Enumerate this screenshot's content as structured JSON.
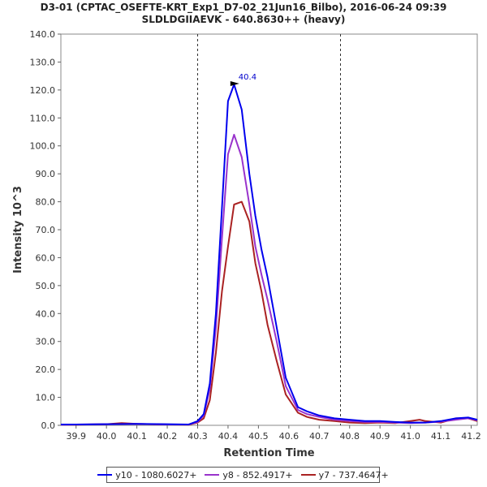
{
  "chart_data": {
    "type": "line",
    "title": "D3-01 (CPTAC_OSEFTE-KRT_Exp1_D7-02_21Jun16_Bilbo), 2016-06-24 09:39",
    "subtitle": "SLDLDGIIAEVK - 640.8630++ (heavy)",
    "xlabel": "Retention Time",
    "ylabel": "Intensity 10^3",
    "xlim": [
      39.85,
      41.22
    ],
    "ylim": [
      0,
      140
    ],
    "xticks": [
      39.9,
      40.0,
      40.1,
      40.2,
      40.3,
      40.4,
      40.5,
      40.6,
      40.7,
      40.8,
      40.9,
      41.0,
      41.1,
      41.2
    ],
    "xtick_labels": [
      "39.9",
      "40.0",
      "40.1",
      "40.2",
      "40.3",
      "40.4",
      "40.5",
      "40.6",
      "40.7",
      "40.8",
      "40.9",
      "41.0",
      "41.1",
      "41.2"
    ],
    "yticks": [
      0,
      10,
      20,
      30,
      40,
      50,
      60,
      70,
      80,
      90,
      100,
      110,
      120,
      130,
      140
    ],
    "ytick_labels": [
      "0.0",
      "10.0",
      "20.0",
      "30.0",
      "40.0",
      "50.0",
      "60.0",
      "70.0",
      "80.0",
      "90.0",
      "100.0",
      "110.0",
      "120.0",
      "130.0",
      "140.0"
    ],
    "boundaries": [
      40.3,
      40.77
    ],
    "peak_annotation": {
      "text": "40.4",
      "x": 40.445,
      "y": 122,
      "color": "#0000cc"
    },
    "series": [
      {
        "name": "y10 - 1080.6027+",
        "color": "#0000ee",
        "x": [
          39.85,
          39.9,
          40.0,
          40.1,
          40.2,
          40.27,
          40.3,
          40.32,
          40.34,
          40.36,
          40.38,
          40.4,
          40.42,
          40.445,
          40.47,
          40.49,
          40.51,
          40.53,
          40.56,
          40.59,
          40.63,
          40.66,
          40.7,
          40.75,
          40.8,
          40.85,
          40.9,
          40.95,
          41.0,
          41.05,
          41.1,
          41.15,
          41.19,
          41.22
        ],
        "y": [
          0.3,
          0.3,
          0.4,
          0.5,
          0.4,
          0.3,
          1.5,
          4.0,
          15.0,
          40.0,
          78.0,
          116.0,
          122.0,
          113.0,
          90.0,
          75.0,
          63.0,
          53.0,
          35.0,
          17.0,
          6.5,
          5.0,
          3.5,
          2.5,
          2.0,
          1.5,
          1.5,
          1.2,
          1.0,
          1.0,
          1.5,
          2.5,
          2.8,
          2.0
        ]
      },
      {
        "name": "y8 - 852.4917+",
        "color": "#9933cc",
        "x": [
          39.85,
          39.9,
          40.0,
          40.1,
          40.2,
          40.27,
          40.3,
          40.32,
          40.34,
          40.36,
          40.38,
          40.4,
          40.42,
          40.445,
          40.47,
          40.49,
          40.51,
          40.53,
          40.56,
          40.59,
          40.63,
          40.66,
          40.7,
          40.75,
          40.8,
          40.85,
          40.9,
          40.95,
          41.0,
          41.05,
          41.1,
          41.15,
          41.19,
          41.22
        ],
        "y": [
          0.2,
          0.3,
          0.4,
          0.5,
          0.3,
          0.3,
          1.2,
          3.5,
          13.0,
          35.0,
          67.0,
          97.0,
          104.0,
          96.0,
          79.0,
          64.0,
          54.0,
          45.0,
          30.0,
          14.0,
          5.5,
          4.0,
          3.0,
          2.0,
          1.5,
          1.2,
          1.2,
          1.0,
          0.8,
          1.0,
          1.3,
          2.0,
          2.5,
          1.8
        ]
      },
      {
        "name": "y7 - 737.4647+",
        "color": "#aa2222",
        "x": [
          39.85,
          39.9,
          40.0,
          40.05,
          40.1,
          40.2,
          40.27,
          40.3,
          40.32,
          40.34,
          40.36,
          40.38,
          40.4,
          40.42,
          40.445,
          40.47,
          40.49,
          40.51,
          40.53,
          40.56,
          40.59,
          40.63,
          40.66,
          40.7,
          40.75,
          40.8,
          40.85,
          40.9,
          40.95,
          41.0,
          41.03,
          41.05,
          41.1,
          41.15,
          41.19,
          41.22
        ],
        "y": [
          0.2,
          0.2,
          0.4,
          0.8,
          0.5,
          0.3,
          0.2,
          1.0,
          2.5,
          9.0,
          26.0,
          48.0,
          64.0,
          79.0,
          80.0,
          73.0,
          58.0,
          48.0,
          36.0,
          23.0,
          11.0,
          4.5,
          3.0,
          2.0,
          1.5,
          1.0,
          0.8,
          1.0,
          0.8,
          1.5,
          2.0,
          1.5,
          1.0,
          2.5,
          2.5,
          1.5
        ]
      }
    ],
    "legend_position": "bottom"
  }
}
